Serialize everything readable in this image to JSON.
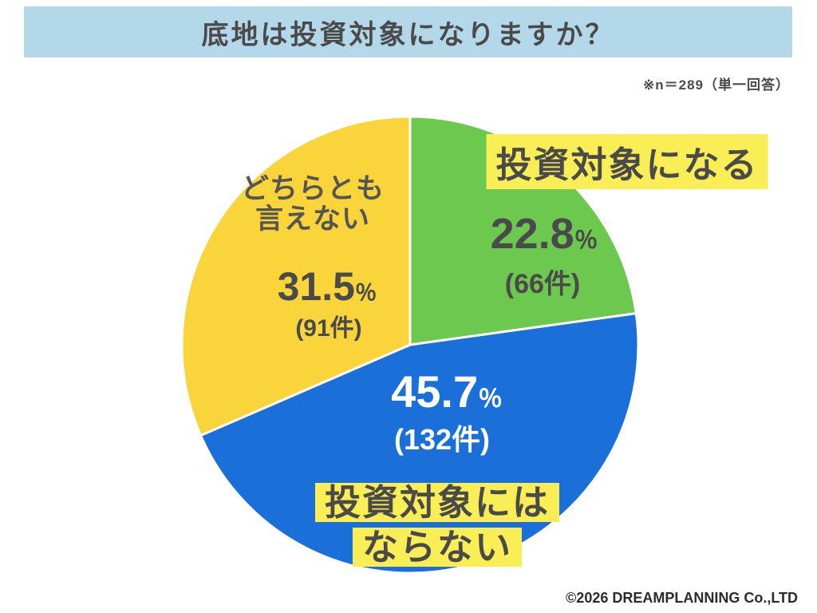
{
  "header": {
    "title": "底地は投資対象になりますか？"
  },
  "note": "※n＝289（単一回答）",
  "footer": "©2026 DREAMPLANNING Co.,LTD",
  "colors": {
    "header_bg": "#b3d8ea",
    "text_dark": "#4a4a4a",
    "highlight_yellow": "#f9ee55",
    "green": "#6dc84f",
    "blue": "#1b6fd9",
    "yellow": "#f9d53b",
    "white_text": "#ffffff"
  },
  "chart_data": {
    "type": "pie",
    "title": "底地は投資対象になりますか？",
    "sample_note": "※n＝289（単一回答）",
    "total_responses": 289,
    "start_angle_deg": 0,
    "direction": "clockwise",
    "legend_position": "on-chart",
    "segments": [
      {
        "label": "投資対象になる",
        "value": 22.8,
        "count": 66,
        "color": "#6dc84f",
        "display": {
          "name": "投資対象になる",
          "pct": "22.8",
          "unit": "％",
          "count": "(66件)"
        }
      },
      {
        "label": "投資対象にはならない",
        "value": 45.7,
        "count": 132,
        "color": "#1b6fd9",
        "display": {
          "name_line1": "投資対象には",
          "name_line2": "ならない",
          "pct": "45.7",
          "unit": "％",
          "count": "(132件)"
        }
      },
      {
        "label": "どちらとも言えない",
        "value": 31.5,
        "count": 91,
        "color": "#f9d53b",
        "display": {
          "name_line1": "どちらとも",
          "name_line2": "言えない",
          "pct": "31.5",
          "unit": "％",
          "count": "(91件)"
        }
      }
    ]
  }
}
